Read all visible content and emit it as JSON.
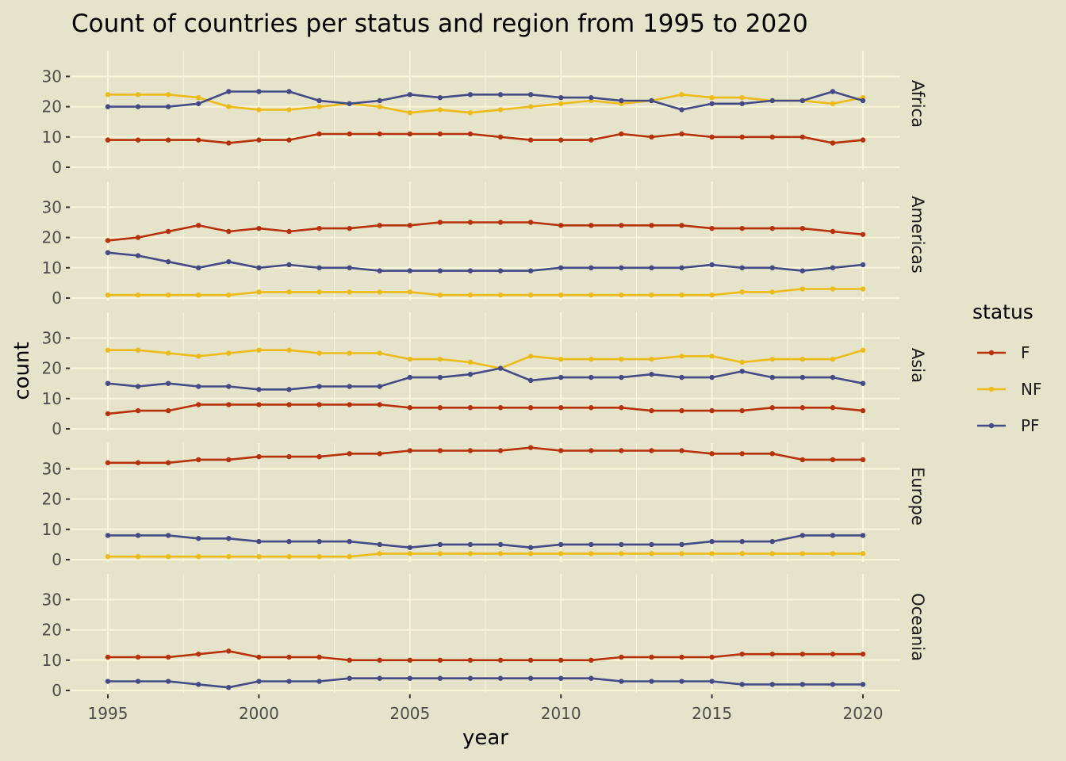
{
  "chart_data": {
    "type": "line",
    "title": "Count of countries per status and region from 1995 to 2020",
    "xlabel": "year",
    "ylabel": "count",
    "x": [
      1995,
      1996,
      1997,
      1998,
      1999,
      2000,
      2001,
      2002,
      2003,
      2004,
      2005,
      2006,
      2007,
      2008,
      2009,
      2010,
      2011,
      2012,
      2013,
      2014,
      2015,
      2016,
      2017,
      2018,
      2019,
      2020
    ],
    "xticks": [
      "1995",
      "2000",
      "2005",
      "2010",
      "2015",
      "2020"
    ],
    "yticks": [
      "0",
      "10",
      "20",
      "30"
    ],
    "xlim": [
      1994,
      2021
    ],
    "ylim": [
      0,
      38
    ],
    "legend": {
      "title": "status",
      "position": "right"
    },
    "series_names": [
      "F",
      "NF",
      "PF"
    ],
    "colors": {
      "F": "#B7310B",
      "NF": "#EDBB18",
      "PF": "#434A86",
      "background": "#E5E3CA",
      "grid": "#FAF6D9"
    },
    "panels": [
      {
        "region": "Africa",
        "series": [
          {
            "name": "F",
            "values": [
              9,
              9,
              9,
              9,
              8,
              9,
              9,
              11,
              11,
              11,
              11,
              11,
              11,
              10,
              9,
              9,
              9,
              11,
              10,
              11,
              10,
              10,
              10,
              10,
              8,
              9
            ]
          },
          {
            "name": "NF",
            "values": [
              24,
              24,
              24,
              23,
              20,
              19,
              19,
              20,
              21,
              20,
              18,
              19,
              18,
              19,
              20,
              21,
              22,
              21,
              22,
              24,
              23,
              23,
              22,
              22,
              21,
              23
            ]
          },
          {
            "name": "PF",
            "values": [
              20,
              20,
              20,
              21,
              25,
              25,
              25,
              22,
              21,
              22,
              24,
              23,
              24,
              24,
              24,
              23,
              23,
              22,
              22,
              19,
              21,
              21,
              22,
              22,
              25,
              22
            ]
          }
        ]
      },
      {
        "region": "Americas",
        "series": [
          {
            "name": "F",
            "values": [
              19,
              20,
              22,
              24,
              22,
              23,
              22,
              23,
              23,
              24,
              24,
              25,
              25,
              25,
              25,
              24,
              24,
              24,
              24,
              24,
              23,
              23,
              23,
              23,
              22,
              21
            ]
          },
          {
            "name": "NF",
            "values": [
              1,
              1,
              1,
              1,
              1,
              2,
              2,
              2,
              2,
              2,
              2,
              1,
              1,
              1,
              1,
              1,
              1,
              1,
              1,
              1,
              1,
              2,
              2,
              3,
              3,
              3
            ]
          },
          {
            "name": "PF",
            "values": [
              15,
              14,
              12,
              10,
              12,
              10,
              11,
              10,
              10,
              9,
              9,
              9,
              9,
              9,
              9,
              10,
              10,
              10,
              10,
              10,
              11,
              10,
              10,
              9,
              10,
              11
            ]
          }
        ]
      },
      {
        "region": "Asia",
        "series": [
          {
            "name": "F",
            "values": [
              5,
              6,
              6,
              8,
              8,
              8,
              8,
              8,
              8,
              8,
              7,
              7,
              7,
              7,
              7,
              7,
              7,
              7,
              6,
              6,
              6,
              6,
              7,
              7,
              7,
              6
            ]
          },
          {
            "name": "NF",
            "values": [
              26,
              26,
              25,
              24,
              25,
              26,
              26,
              25,
              25,
              25,
              23,
              23,
              22,
              20,
              24,
              23,
              23,
              23,
              23,
              24,
              24,
              22,
              23,
              23,
              23,
              26
            ]
          },
          {
            "name": "PF",
            "values": [
              15,
              14,
              15,
              14,
              14,
              13,
              13,
              14,
              14,
              14,
              17,
              17,
              18,
              20,
              16,
              17,
              17,
              17,
              18,
              17,
              17,
              19,
              17,
              17,
              17,
              15
            ]
          }
        ]
      },
      {
        "region": "Europe",
        "series": [
          {
            "name": "F",
            "values": [
              32,
              32,
              32,
              33,
              33,
              34,
              34,
              34,
              35,
              35,
              36,
              36,
              36,
              36,
              37,
              36,
              36,
              36,
              36,
              36,
              35,
              35,
              35,
              33,
              33,
              33
            ]
          },
          {
            "name": "NF",
            "values": [
              1,
              1,
              1,
              1,
              1,
              1,
              1,
              1,
              1,
              2,
              2,
              2,
              2,
              2,
              2,
              2,
              2,
              2,
              2,
              2,
              2,
              2,
              2,
              2,
              2,
              2
            ]
          },
          {
            "name": "PF",
            "values": [
              8,
              8,
              8,
              7,
              7,
              6,
              6,
              6,
              6,
              5,
              4,
              5,
              5,
              5,
              4,
              5,
              5,
              5,
              5,
              5,
              6,
              6,
              6,
              8,
              8,
              8
            ]
          }
        ]
      },
      {
        "region": "Oceania",
        "series": [
          {
            "name": "F",
            "values": [
              11,
              11,
              11,
              12,
              13,
              11,
              11,
              11,
              10,
              10,
              10,
              10,
              10,
              10,
              10,
              10,
              10,
              11,
              11,
              11,
              11,
              12,
              12,
              12,
              12,
              12
            ]
          },
          {
            "name": "PF",
            "values": [
              3,
              3,
              3,
              2,
              1,
              3,
              3,
              3,
              4,
              4,
              4,
              4,
              4,
              4,
              4,
              4,
              4,
              3,
              3,
              3,
              3,
              2,
              2,
              2,
              2,
              2
            ]
          }
        ]
      }
    ]
  }
}
